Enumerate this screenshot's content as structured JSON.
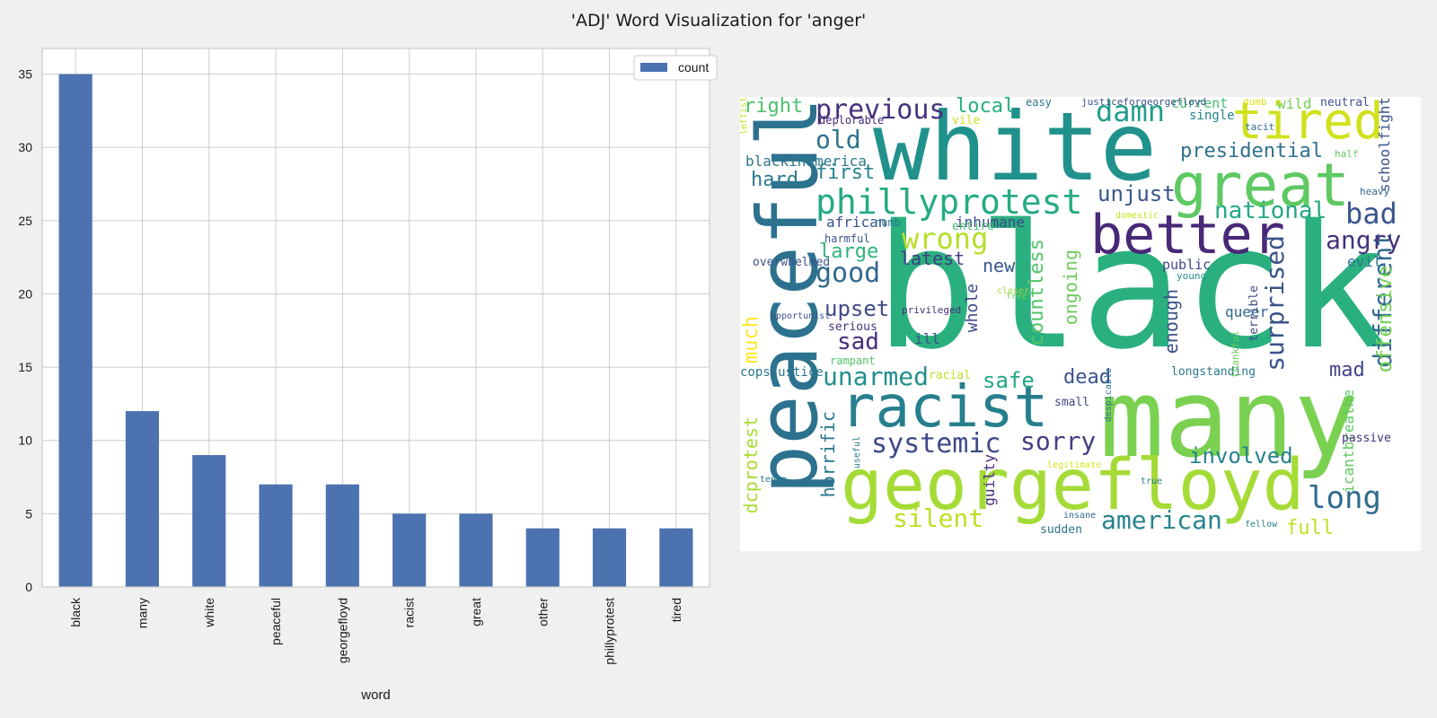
{
  "figure_title": "'ADJ' Word Visualization for 'anger'",
  "chart_data": [
    {
      "type": "bar",
      "categories": [
        "black",
        "many",
        "white",
        "peaceful",
        "georgefloyd",
        "racist",
        "great",
        "other",
        "phillyprotest",
        "tired"
      ],
      "series": [
        {
          "name": "count",
          "values": [
            35,
            12,
            9,
            7,
            7,
            5,
            5,
            4,
            4,
            4
          ]
        }
      ],
      "xlabel": "word",
      "ylabel": "",
      "ylim": [
        0,
        36.75
      ],
      "yticks": [
        0,
        5,
        10,
        15,
        20,
        25,
        30,
        35
      ],
      "grid": true,
      "legend": "top-right",
      "bar_color": "#4c72b0"
    },
    {
      "type": "wordcloud",
      "words": [
        {
          "t": "black",
          "fs": 190,
          "c": "#2ab07f"
        },
        {
          "t": "many",
          "fs": 120,
          "c": "#7ad151"
        },
        {
          "t": "white",
          "fs": 105,
          "c": "#21918c"
        },
        {
          "t": "peaceful",
          "fs": 92,
          "c": "#2c728e",
          "v": 1
        },
        {
          "t": "georgefloyd",
          "fs": 78,
          "c": "#a5db36"
        },
        {
          "t": "great",
          "fs": 66,
          "c": "#5ec962"
        },
        {
          "t": "racist",
          "fs": 64,
          "c": "#277f8e"
        },
        {
          "t": "better",
          "fs": 60,
          "c": "#482878"
        },
        {
          "t": "tired",
          "fs": 56,
          "c": "#d0e11c"
        },
        {
          "t": "phillyprotest",
          "fs": 38,
          "c": "#25ab82"
        },
        {
          "t": "systemic",
          "fs": 30,
          "c": "#3e4989"
        },
        {
          "t": "damn",
          "fs": 32,
          "c": "#1f9e89"
        },
        {
          "t": "previous",
          "fs": 30,
          "c": "#46327e"
        },
        {
          "t": "wrong",
          "fs": 32,
          "c": "#b5de2b"
        },
        {
          "t": "unarmed",
          "fs": 28,
          "c": "#218f8d"
        },
        {
          "t": "sorry",
          "fs": 28,
          "c": "#433e85"
        },
        {
          "t": "long",
          "fs": 34,
          "c": "#306a8e"
        },
        {
          "t": "american",
          "fs": 28,
          "c": "#26828e"
        },
        {
          "t": "silent",
          "fs": 28,
          "c": "#bddf26"
        },
        {
          "t": "different",
          "fs": 28,
          "c": "#31688e",
          "v": 1
        },
        {
          "t": "surprised",
          "fs": 28,
          "c": "#3b528b",
          "v": 1
        },
        {
          "t": "angry",
          "fs": 28,
          "c": "#46327e"
        },
        {
          "t": "national",
          "fs": 26,
          "c": "#23a983"
        },
        {
          "t": "bad",
          "fs": 32,
          "c": "#39568c"
        },
        {
          "t": "presidential",
          "fs": 22,
          "c": "#2d708e"
        },
        {
          "t": "unjust",
          "fs": 24,
          "c": "#39568c"
        },
        {
          "t": "involved",
          "fs": 24,
          "c": "#26828e"
        },
        {
          "t": "good",
          "fs": 30,
          "c": "#31688e"
        },
        {
          "t": "upset",
          "fs": 24,
          "c": "#3e4a89"
        },
        {
          "t": "sad",
          "fs": 26,
          "c": "#472d7b"
        },
        {
          "t": "safe",
          "fs": 24,
          "c": "#22a884"
        },
        {
          "t": "old",
          "fs": 28,
          "c": "#2c728e"
        },
        {
          "t": "local",
          "fs": 22,
          "c": "#27ad81"
        },
        {
          "t": "first",
          "fs": 22,
          "c": "#26828e"
        },
        {
          "t": "hard",
          "fs": 22,
          "c": "#2a788e"
        },
        {
          "t": "large",
          "fs": 22,
          "c": "#2fb47c"
        },
        {
          "t": "latest",
          "fs": 20,
          "c": "#433e85"
        },
        {
          "t": "new",
          "fs": 20,
          "c": "#39568c"
        },
        {
          "t": "dead",
          "fs": 22,
          "c": "#3b528b"
        },
        {
          "t": "mad",
          "fs": 22,
          "c": "#414487"
        },
        {
          "t": "full",
          "fs": 22,
          "c": "#c2df23"
        },
        {
          "t": "right",
          "fs": 22,
          "c": "#4ac16d"
        },
        {
          "t": "countless",
          "fs": 22,
          "c": "#52c569",
          "v": 1
        },
        {
          "t": "ongoing",
          "fs": 20,
          "c": "#6ccd5a",
          "v": 1
        },
        {
          "t": "offensive",
          "fs": 22,
          "c": "#73d056",
          "v": 1
        },
        {
          "t": "much",
          "fs": 22,
          "c": "#fde725",
          "v": 1
        },
        {
          "t": "dcprotest",
          "fs": 20,
          "c": "#a8db34",
          "v": 1
        },
        {
          "t": "horrific",
          "fs": 20,
          "c": "#2a788e",
          "v": 1
        },
        {
          "t": "whole",
          "fs": 18,
          "c": "#3e4989",
          "v": 1
        },
        {
          "t": "enough",
          "fs": 20,
          "c": "#3b528b",
          "v": 1
        },
        {
          "t": "guilty",
          "fs": 16,
          "c": "#472d7b",
          "v": 1
        },
        {
          "t": "icantbreathe",
          "fs": 16,
          "c": "#5ec962",
          "v": 1
        },
        {
          "t": "schoolfight",
          "fs": 16,
          "c": "#3b528b",
          "v": 1
        },
        {
          "t": "african",
          "fs": 16,
          "c": "#3b528b"
        },
        {
          "t": "inhumane",
          "fs": 16,
          "c": "#3e4989"
        },
        {
          "t": "blackinamerica",
          "fs": 16,
          "c": "#2a768e"
        },
        {
          "t": "queer",
          "fs": 16,
          "c": "#31688e"
        },
        {
          "t": "evil",
          "fs": 16,
          "c": "#2c728e"
        },
        {
          "t": "public",
          "fs": 15,
          "c": "#3e4989"
        },
        {
          "t": "longstanding",
          "fs": 13,
          "c": "#2a788e"
        },
        {
          "t": "copsjustice",
          "fs": 14,
          "c": "#2a768e"
        },
        {
          "t": "overwhelmed",
          "fs": 13,
          "c": "#3b528b"
        },
        {
          "t": "ill",
          "fs": 16,
          "c": "#3b528b"
        },
        {
          "t": "wild",
          "fs": 16,
          "c": "#73d056"
        },
        {
          "t": "neutral",
          "fs": 13,
          "c": "#3b528b"
        },
        {
          "t": "current",
          "fs": 15,
          "c": "#3fbc73"
        },
        {
          "t": "single",
          "fs": 14,
          "c": "#26828e"
        },
        {
          "t": "serious",
          "fs": 13,
          "c": "#46327e"
        },
        {
          "t": "rampant",
          "fs": 12,
          "c": "#52c569"
        },
        {
          "t": "harmful",
          "fs": 12,
          "c": "#3b528b"
        },
        {
          "t": "numb",
          "fs": 12,
          "c": "#2a788e"
        },
        {
          "t": "entire",
          "fs": 13,
          "c": "#44bf70"
        },
        {
          "t": "racial",
          "fs": 13,
          "c": "#bddf26"
        },
        {
          "t": "small",
          "fs": 13,
          "c": "#3e4989"
        },
        {
          "t": "sudden",
          "fs": 13,
          "c": "#2c728e"
        },
        {
          "t": "passive",
          "fs": 13,
          "c": "#46327e"
        },
        {
          "t": "terrible",
          "fs": 13,
          "c": "#3e4989",
          "v": 1
        },
        {
          "t": "easy",
          "fs": 12,
          "c": "#2c728e"
        },
        {
          "t": "vile",
          "fs": 13,
          "c": "#c8e020"
        },
        {
          "t": "deplorable",
          "fs": 12,
          "c": "#482878"
        },
        {
          "t": "justiceforgeorgefloyd",
          "fs": 11,
          "c": "#3b528b"
        },
        {
          "t": "dumb",
          "fs": 11,
          "c": "#d8e219"
        },
        {
          "t": "tacit",
          "fs": 11,
          "c": "#2d708e"
        },
        {
          "t": "heavy",
          "fs": 11,
          "c": "#31688e"
        },
        {
          "t": "half",
          "fs": 11,
          "c": "#5ec962"
        },
        {
          "t": "domestic",
          "fs": 10,
          "c": "#c8e020"
        },
        {
          "t": "young",
          "fs": 11,
          "c": "#21918c"
        },
        {
          "t": "free",
          "fs": 10,
          "c": "#7ad151"
        },
        {
          "t": "opportunist",
          "fs": 10,
          "c": "#3b528b"
        },
        {
          "t": "privileged",
          "fs": 11,
          "c": "#472d7b"
        },
        {
          "t": "closer",
          "fs": 10,
          "c": "#a0da39"
        },
        {
          "t": "thankful",
          "fs": 11,
          "c": "#6ccd5a",
          "v": 1
        },
        {
          "t": "useful",
          "fs": 10,
          "c": "#2a788e",
          "v": 1
        },
        {
          "t": "despicable",
          "fs": 10,
          "c": "#2c728e",
          "v": 1
        },
        {
          "t": "legitimate",
          "fs": 10,
          "c": "#d8e219"
        },
        {
          "t": "tense",
          "fs": 10,
          "c": "#2a788e"
        },
        {
          "t": "insane",
          "fs": 10,
          "c": "#31688e"
        },
        {
          "t": "fellow",
          "fs": 10,
          "c": "#26828e"
        },
        {
          "t": "true",
          "fs": 10,
          "c": "#2a788e"
        },
        {
          "t": "leftist",
          "fs": 10,
          "c": "#c2df23",
          "v": 1
        }
      ]
    }
  ]
}
